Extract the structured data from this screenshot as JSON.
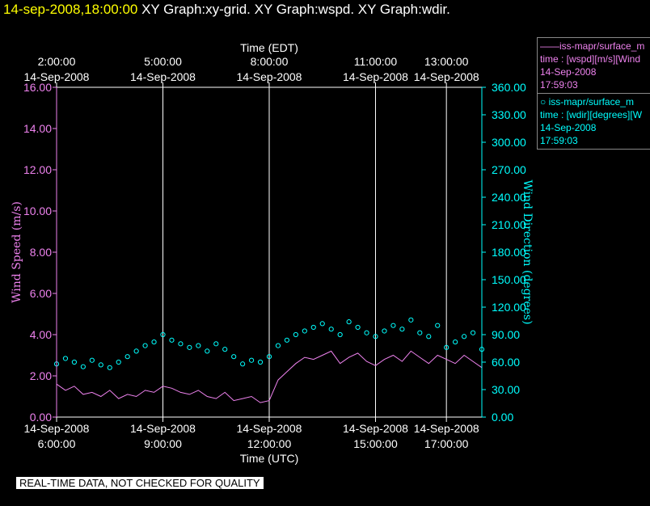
{
  "header": {
    "date": "14-sep-2008,18:00:00",
    "rest": " XY Graph:xy-grid.  XY Graph:wspd.  XY Graph:wdir."
  },
  "legend": {
    "wspd": {
      "name": "——iss-mapr/surface_m",
      "line1": "time : [wspd][m/s][Wind",
      "date": "14-Sep-2008",
      "time": "17:59:03"
    },
    "wdir": {
      "name": "○  iss-mapr/surface_m",
      "line1": "time : [wdir][degrees][W",
      "date": "14-Sep-2008",
      "time": "17:59:03"
    }
  },
  "disclaimer": "REAL-TIME DATA, NOT CHECKED FOR QUALITY",
  "colors": {
    "wspd": "#ee82ee",
    "wdir": "#00ffff",
    "axis": "#ffffff",
    "grid": "#ffffff"
  },
  "chart_data": {
    "type": "line",
    "title": "XY Graph:xy-grid.  XY Graph:wspd.  XY Graph:wdir.",
    "xlabel_bottom": "Time (UTC)",
    "xlabel_top": "Time (EDT)",
    "ylabel_left": "Wind Speed (m/s)",
    "ylabel_right": "Wind Direction (degrees)",
    "xlim_hours_utc": [
      6.0,
      18.0
    ],
    "ylim_left": [
      0,
      16
    ],
    "ylim_right": [
      0,
      360
    ],
    "left_ticks": [
      "0.00",
      "2.00",
      "4.00",
      "6.00",
      "8.00",
      "10.00",
      "12.00",
      "14.00",
      "16.00"
    ],
    "right_ticks": [
      "0.00",
      "30.00",
      "60.00",
      "90.00",
      "120.00",
      "150.00",
      "180.00",
      "210.00",
      "240.00",
      "270.00",
      "300.00",
      "330.00",
      "360.00"
    ],
    "bottom_ticks": [
      {
        "hour": 6,
        "date": "14-Sep-2008",
        "time": "6:00:00"
      },
      {
        "hour": 9,
        "date": "14-Sep-2008",
        "time": "9:00:00"
      },
      {
        "hour": 12,
        "date": "14-Sep-2008",
        "time": "12:00:00"
      },
      {
        "hour": 15,
        "date": "14-Sep-2008",
        "time": "15:00:00"
      },
      {
        "hour": 17,
        "date": "14-Sep-2008",
        "time": "17:00:00"
      }
    ],
    "top_ticks": [
      {
        "hour": 6,
        "time": "2:00:00",
        "date": "14-Sep-2008"
      },
      {
        "hour": 9,
        "time": "5:00:00",
        "date": "14-Sep-2008"
      },
      {
        "hour": 12,
        "time": "8:00:00",
        "date": "14-Sep-2008"
      },
      {
        "hour": 15,
        "time": "11:00:00",
        "date": "14-Sep-2008"
      },
      {
        "hour": 17,
        "time": "13:00:00",
        "date": "14-Sep-2008"
      }
    ],
    "gridlines_hours": [
      9,
      12,
      15,
      17
    ],
    "series": [
      {
        "name": "wspd",
        "axis": "left",
        "style": "line",
        "x": [
          6.0,
          6.25,
          6.5,
          6.75,
          7.0,
          7.25,
          7.5,
          7.75,
          8.0,
          8.25,
          8.5,
          8.75,
          9.0,
          9.25,
          9.5,
          9.75,
          10.0,
          10.25,
          10.5,
          10.75,
          11.0,
          11.25,
          11.5,
          11.75,
          12.0,
          12.25,
          12.5,
          12.75,
          13.0,
          13.25,
          13.5,
          13.75,
          14.0,
          14.25,
          14.5,
          14.75,
          15.0,
          15.25,
          15.5,
          15.75,
          16.0,
          16.25,
          16.5,
          16.75,
          17.0,
          17.25,
          17.5,
          17.75,
          18.0
        ],
        "y": [
          1.6,
          1.3,
          1.5,
          1.1,
          1.2,
          1.0,
          1.3,
          0.9,
          1.1,
          1.0,
          1.3,
          1.2,
          1.5,
          1.4,
          1.2,
          1.1,
          1.3,
          1.0,
          0.9,
          1.2,
          0.8,
          0.9,
          1.0,
          0.7,
          0.8,
          1.8,
          2.2,
          2.6,
          2.9,
          2.8,
          3.0,
          3.2,
          2.6,
          2.9,
          3.1,
          2.7,
          2.5,
          2.8,
          3.0,
          2.7,
          3.2,
          2.9,
          2.6,
          3.0,
          2.8,
          2.6,
          3.0,
          2.7,
          2.4
        ]
      },
      {
        "name": "wdir",
        "axis": "right",
        "style": "circles",
        "x": [
          6.0,
          6.25,
          6.5,
          6.75,
          7.0,
          7.25,
          7.5,
          7.75,
          8.0,
          8.25,
          8.5,
          8.75,
          9.0,
          9.25,
          9.5,
          9.75,
          10.0,
          10.25,
          10.5,
          10.75,
          11.0,
          11.25,
          11.5,
          11.75,
          12.0,
          12.25,
          12.5,
          12.75,
          13.0,
          13.25,
          13.5,
          13.75,
          14.0,
          14.25,
          14.5,
          14.75,
          15.0,
          15.25,
          15.5,
          15.75,
          16.0,
          16.25,
          16.5,
          16.75,
          17.0,
          17.25,
          17.5,
          17.75,
          18.0
        ],
        "y": [
          58,
          64,
          60,
          55,
          62,
          57,
          54,
          60,
          66,
          72,
          78,
          82,
          90,
          84,
          80,
          76,
          78,
          72,
          80,
          74,
          66,
          58,
          62,
          60,
          66,
          78,
          84,
          90,
          94,
          98,
          102,
          96,
          90,
          104,
          98,
          92,
          88,
          94,
          100,
          96,
          106,
          92,
          88,
          100,
          76,
          82,
          88,
          92,
          74
        ]
      }
    ]
  }
}
